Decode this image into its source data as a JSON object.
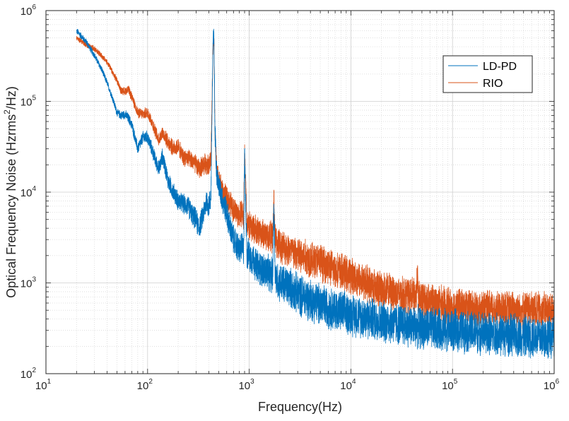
{
  "chart_data": {
    "type": "line",
    "xscale": "log",
    "yscale": "log",
    "xlabel": "Frequency(Hz)",
    "ylabel_parts": [
      "Optical Frequency Noise (Hzrms",
      "2",
      "/Hz)"
    ],
    "xlim": [
      10,
      1000000
    ],
    "ylim": [
      100,
      1000000
    ],
    "grid": true,
    "legend_position": "top-right",
    "x_ticks": [
      {
        "value": 10,
        "base": "10",
        "exp": "1"
      },
      {
        "value": 100,
        "base": "10",
        "exp": "2"
      },
      {
        "value": 1000,
        "base": "10",
        "exp": "3"
      },
      {
        "value": 10000,
        "base": "10",
        "exp": "4"
      },
      {
        "value": 100000,
        "base": "10",
        "exp": "5"
      },
      {
        "value": 1000000,
        "base": "10",
        "exp": "6"
      }
    ],
    "y_ticks": [
      {
        "value": 100,
        "base": "10",
        "exp": "2"
      },
      {
        "value": 1000,
        "base": "10",
        "exp": "3"
      },
      {
        "value": 10000,
        "base": "10",
        "exp": "4"
      },
      {
        "value": 100000,
        "base": "10",
        "exp": "5"
      },
      {
        "value": 1000000,
        "base": "10",
        "exp": "6"
      }
    ],
    "series": [
      {
        "name": "LD-PD",
        "color": "#0072BD",
        "noise": 0.16,
        "x": [
          20,
          25,
          30,
          35,
          40,
          45,
          50,
          55,
          60,
          65,
          70,
          80,
          90,
          100,
          110,
          120,
          130,
          140,
          150,
          160,
          180,
          200,
          220,
          250,
          280,
          300,
          320,
          350,
          380,
          400,
          420,
          440,
          450,
          460,
          480,
          500,
          550,
          600,
          650,
          700,
          800,
          850,
          880,
          900,
          950,
          1000,
          1100,
          1200,
          1500,
          1700,
          1750,
          1800,
          1850,
          2000,
          2500,
          3000,
          4000,
          5000,
          7000,
          10000,
          20000,
          50000,
          100000,
          200000,
          500000,
          1000000
        ],
        "y": [
          600000,
          450000,
          320000,
          230000,
          160000,
          110000,
          75000,
          70000,
          72000,
          65000,
          55000,
          30000,
          40000,
          40000,
          30000,
          22000,
          18000,
          25000,
          18000,
          13000,
          10000,
          8000,
          7500,
          7000,
          5500,
          5000,
          4000,
          5500,
          8000,
          7000,
          9000,
          450000,
          500000,
          50000,
          15000,
          12000,
          8000,
          6000,
          4000,
          3000,
          2300,
          2500,
          2200,
          25000,
          2100,
          2000,
          1800,
          1500,
          1300,
          1200,
          7500,
          1300,
          1100,
          1000,
          900,
          750,
          650,
          580,
          500,
          450,
          380,
          320,
          300,
          280,
          260,
          250
        ]
      },
      {
        "name": "RIO",
        "color": "#D95319",
        "noise": 0.14,
        "x": [
          20,
          25,
          30,
          35,
          40,
          45,
          50,
          55,
          60,
          65,
          70,
          80,
          90,
          100,
          110,
          120,
          130,
          140,
          150,
          160,
          180,
          200,
          220,
          250,
          280,
          300,
          320,
          350,
          380,
          400,
          420,
          440,
          450,
          460,
          480,
          500,
          550,
          600,
          700,
          800,
          850,
          880,
          900,
          950,
          1000,
          1200,
          1500,
          1700,
          1750,
          1800,
          1850,
          2000,
          2500,
          3000,
          5000,
          7000,
          10000,
          20000,
          30000,
          44000,
          45000,
          46000,
          50000,
          100000,
          200000,
          500000,
          1000000
        ],
        "y": [
          500000,
          420000,
          380000,
          320000,
          270000,
          210000,
          170000,
          130000,
          130000,
          135000,
          110000,
          75000,
          72000,
          75000,
          60000,
          45000,
          38000,
          45000,
          40000,
          35000,
          30000,
          32000,
          25000,
          23000,
          22000,
          20000,
          18000,
          20000,
          21000,
          20000,
          22000,
          380000,
          450000,
          50000,
          16000,
          14000,
          10000,
          8500,
          6500,
          5500,
          6000,
          5000,
          27000,
          4500,
          4200,
          3800,
          3300,
          3200,
          8000,
          3000,
          2800,
          2600,
          2300,
          2000,
          1700,
          1400,
          1200,
          850,
          750,
          700,
          1400,
          680,
          650,
          550,
          520,
          510,
          500
        ]
      }
    ]
  }
}
